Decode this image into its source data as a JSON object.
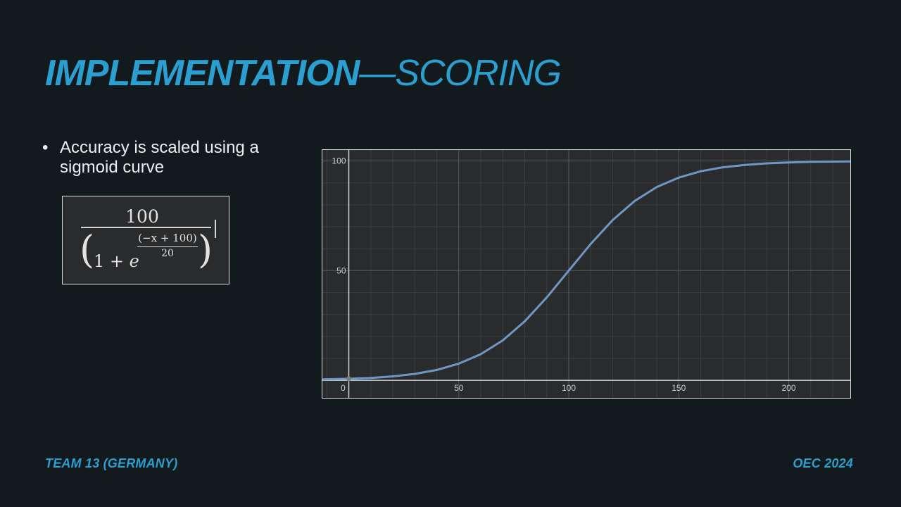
{
  "slide": {
    "title_bold": "IMPLEMENTATION",
    "title_rest": "—SCORING",
    "bullets": [
      "Accuracy is scaled using a sigmoid curve"
    ],
    "footer_left": "TEAM 13 (GERMANY)",
    "footer_right": "OEC 2024"
  },
  "formula": {
    "numerator": "100",
    "one_plus": "1 + ",
    "e": "e",
    "exp_numerator": "(−x + 100)",
    "exp_denominator": "20"
  },
  "colors": {
    "accent": "#2a9fd0",
    "curve": "#6f97c4",
    "chart_bg": "#2a2b2d"
  },
  "chart_data": {
    "type": "line",
    "title": "",
    "xlabel": "",
    "ylabel": "",
    "xlim": [
      -12,
      228
    ],
    "ylim": [
      -8,
      105
    ],
    "x_ticks": [
      0,
      50,
      100,
      150,
      200
    ],
    "y_ticks": [
      50,
      100
    ],
    "grid": true,
    "series": [
      {
        "x": [
          -12,
          0,
          10,
          20,
          30,
          40,
          50,
          60,
          70,
          80,
          90,
          100,
          110,
          120,
          130,
          140,
          150,
          160,
          170,
          180,
          190,
          200,
          210,
          228
        ],
        "y": [
          0.4,
          0.7,
          1.1,
          1.8,
          2.9,
          4.7,
          7.6,
          11.9,
          18.2,
          26.9,
          37.8,
          50,
          62.2,
          73.1,
          81.8,
          88.1,
          92.4,
          95.3,
          97.1,
          98.2,
          98.9,
          99.3,
          99.6,
          99.8
        ]
      }
    ]
  }
}
